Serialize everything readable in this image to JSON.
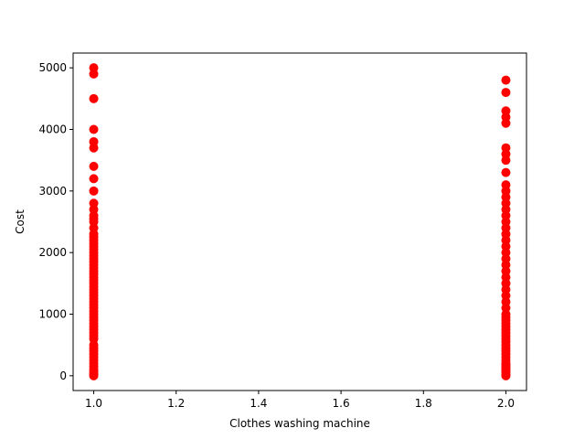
{
  "chart_data": {
    "type": "scatter",
    "title": "",
    "xlabel": "Clothes washing machine",
    "ylabel": "Cost",
    "xlim": [
      0.95,
      2.05
    ],
    "ylim": [
      -240,
      5240
    ],
    "xticks": [
      "1.0",
      "1.2",
      "1.4",
      "1.6",
      "1.8",
      "2.0"
    ],
    "yticks": [
      "0",
      "1000",
      "2000",
      "3000",
      "4000",
      "5000"
    ],
    "grid": false,
    "marker_color": "#ff0000",
    "series": [
      {
        "x_value": 1,
        "y_values": [
          0,
          30,
          60,
          100,
          150,
          200,
          250,
          300,
          350,
          400,
          450,
          500,
          600,
          650,
          700,
          750,
          800,
          850,
          900,
          950,
          1000,
          1050,
          1100,
          1150,
          1200,
          1250,
          1300,
          1350,
          1400,
          1450,
          1500,
          1550,
          1600,
          1650,
          1700,
          1750,
          1800,
          1850,
          1900,
          1950,
          2000,
          2050,
          2100,
          2150,
          2200,
          2250,
          2300,
          2400,
          2500,
          2550,
          2600,
          2700,
          2800,
          3000,
          3200,
          3400,
          3700,
          3800,
          4000,
          4500,
          4900,
          5000
        ]
      },
      {
        "x_value": 2,
        "y_values": [
          0,
          20,
          50,
          80,
          100,
          130,
          150,
          180,
          200,
          250,
          300,
          350,
          400,
          450,
          500,
          550,
          600,
          650,
          700,
          750,
          800,
          850,
          900,
          950,
          1000,
          1100,
          1200,
          1300,
          1400,
          1500,
          1600,
          1700,
          1800,
          1900,
          2000,
          2100,
          2200,
          2300,
          2400,
          2500,
          2600,
          2700,
          2800,
          2900,
          3000,
          3100,
          3300,
          3500,
          3600,
          3700,
          4100,
          4200,
          4300,
          4600,
          4800
        ]
      }
    ]
  }
}
